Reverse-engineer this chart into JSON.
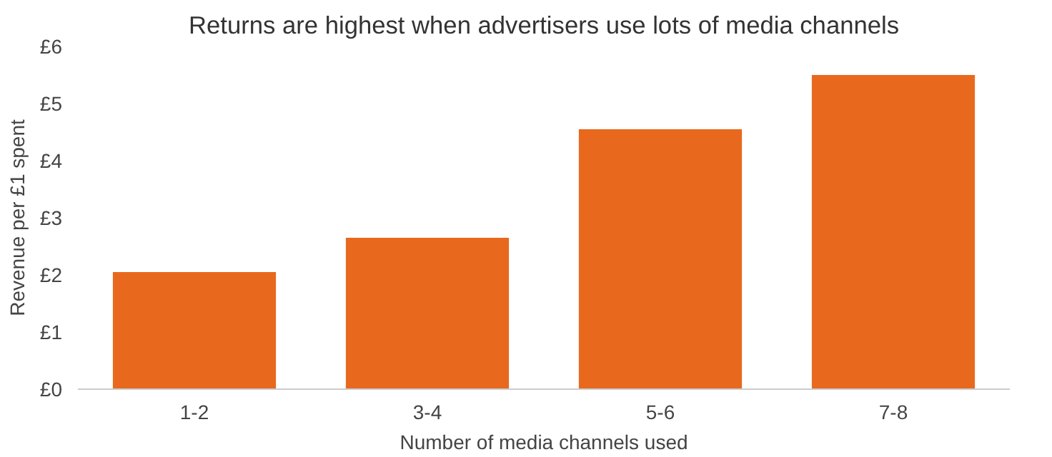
{
  "chart_data": {
    "type": "bar",
    "title": "Returns are highest when advertisers use lots of media channels",
    "xlabel": "Number of media channels used",
    "ylabel": "Revenue per £1 spent",
    "categories": [
      "1-2",
      "3-4",
      "5-6",
      "7-8"
    ],
    "series": [
      {
        "color": "#e8691e",
        "values": [
          2.05,
          2.65,
          4.55,
          5.5
        ]
      }
    ],
    "ylim": [
      0,
      6
    ],
    "yticks": [
      {
        "value": 0,
        "label": "£0"
      },
      {
        "value": 1,
        "label": "£1"
      },
      {
        "value": 2,
        "label": "£2"
      },
      {
        "value": 3,
        "label": "£3"
      },
      {
        "value": 4,
        "label": "£4"
      },
      {
        "value": 5,
        "label": "£5"
      },
      {
        "value": 6,
        "label": "£6"
      }
    ],
    "grid": false
  }
}
